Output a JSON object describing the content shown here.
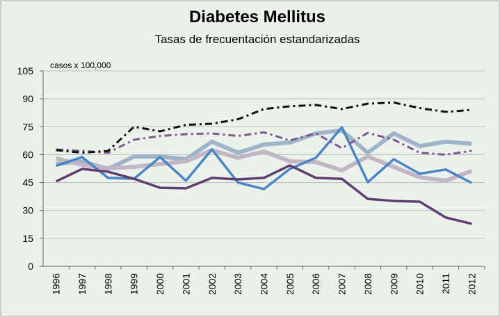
{
  "chart_data": {
    "type": "line",
    "title": "Diabetes Mellitus",
    "subtitle": "Tasas de frecuentación estandarizadas",
    "y_label": "casos x 100,000",
    "categories": [
      "1996",
      "1997",
      "1998",
      "1999",
      "2000",
      "2001",
      "2002",
      "2003",
      "2004",
      "2005",
      "2006",
      "2007",
      "2008",
      "2009",
      "2010",
      "2011",
      "2012"
    ],
    "ylim": [
      0,
      105
    ],
    "yticks": [
      0,
      15,
      30,
      45,
      60,
      75,
      90,
      105
    ],
    "grid": true,
    "series": [
      {
        "color": "#9fb3c9",
        "style": "thick",
        "values": [
          55,
          56.4,
          52.3,
          59,
          59,
          57.5,
          67,
          61,
          65.4,
          66.5,
          71.4,
          73,
          61,
          71.4,
          64.6,
          67,
          65.8
        ]
      },
      {
        "color": "#c2b5c6",
        "style": "thick",
        "values": [
          58,
          54.5,
          52.7,
          53.4,
          55,
          56.4,
          62.4,
          58.3,
          61.7,
          56.4,
          56,
          51.6,
          59,
          53.4,
          47.8,
          46,
          51.2
        ]
      },
      {
        "color": "#4a86c5",
        "style": "solid",
        "values": [
          54,
          58.7,
          47.5,
          47,
          58.7,
          46,
          62.8,
          45,
          41.5,
          52.3,
          58.3,
          74.7,
          45.2,
          57.5,
          49.7,
          52,
          44.8
        ]
      },
      {
        "color": "#5d3f72",
        "style": "solid",
        "values": [
          45.6,
          52.3,
          50.8,
          47,
          42.2,
          41.9,
          47.5,
          46.7,
          47.5,
          54.2,
          47.5,
          47,
          36.2,
          35.1,
          34.7,
          26.2,
          22.8
        ]
      },
      {
        "color": "#7a5a8e",
        "style": "dashdot",
        "values": [
          62.8,
          62,
          61,
          68,
          70,
          71,
          71.4,
          70,
          72,
          67.6,
          71.4,
          63.5,
          71.7,
          68,
          61,
          60,
          62
        ]
      },
      {
        "color": "#111111",
        "style": "dashdot",
        "values": [
          62.4,
          61,
          62,
          75,
          72.5,
          76,
          76.6,
          79,
          84.5,
          86,
          86.7,
          84.5,
          87.4,
          88,
          85,
          83,
          84
        ]
      }
    ]
  }
}
